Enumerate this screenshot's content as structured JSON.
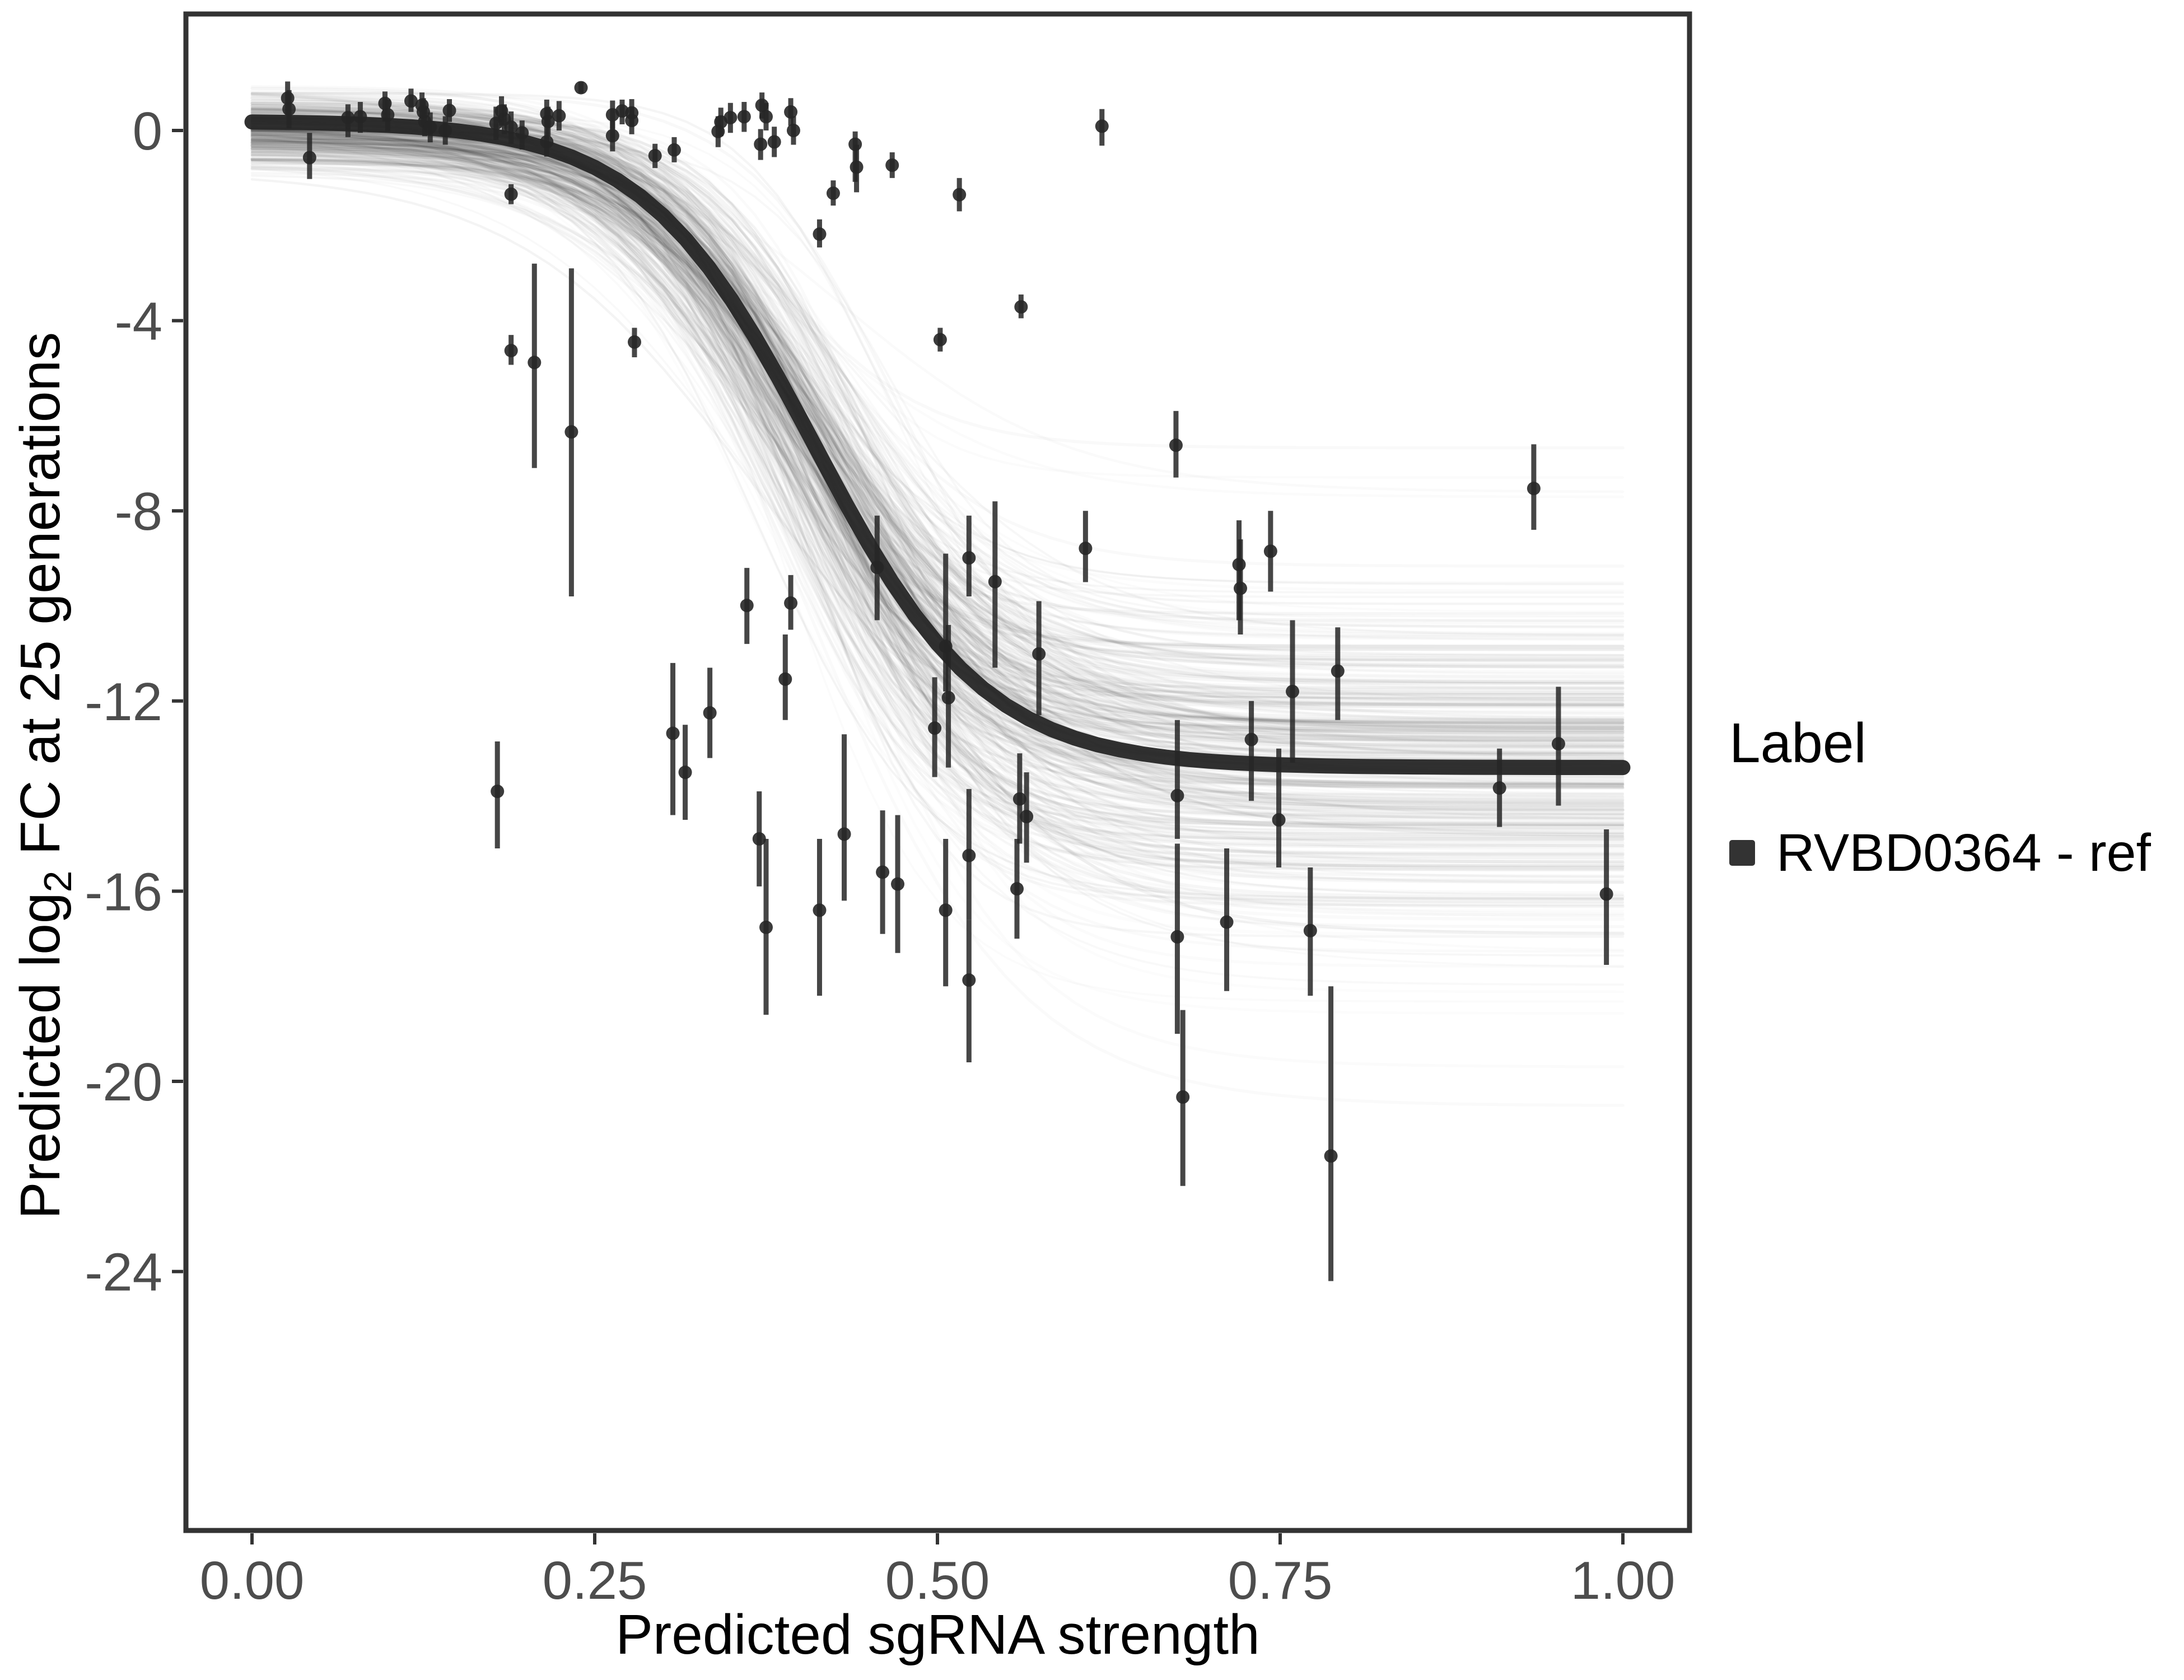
{
  "figure": {
    "background_color": "#ffffff",
    "panel_border_color": "#333333",
    "tick_label_color": "#4d4d4d",
    "x_axis": {
      "title": "Predicted sgRNA strength",
      "tick_labels": [
        "0.00",
        "0.25",
        "0.50",
        "0.75",
        "1.00"
      ]
    },
    "y_axis": {
      "title_prefix": "Predicted  log",
      "title_sub": "2",
      "title_suffix": " FC at 25 generations",
      "tick_labels": [
        "0",
        "-4",
        "-8",
        "-12",
        "-16",
        "-20",
        "-24"
      ]
    },
    "legend": {
      "title": "Label",
      "items": [
        {
          "label": "RVBD0364 - ref",
          "swatch_color": "#333333"
        }
      ]
    }
  },
  "chart_data": {
    "type": "scatter",
    "title": "",
    "xlabel": "Predicted sgRNA strength",
    "ylabel": "Predicted log2 FC at 25 generations",
    "xlim": [
      -0.048,
      1.049
    ],
    "ylim": [
      -29.4,
      2.45
    ],
    "x_ticks": [
      0,
      0.25,
      0.5,
      0.75,
      1.0
    ],
    "y_ticks": [
      0,
      -4,
      -8,
      -12,
      -16,
      -20,
      -24
    ],
    "grid": false,
    "legend_position": "right",
    "point_color": "#262626",
    "curve_color": "#262626",
    "band_color": "#000000",
    "fit_curve": {
      "name": "RVBD0364 - ref",
      "model": "logistic: y = top - (top - bottom) / (1 + exp(-k*(x - x0)))",
      "params": {
        "top": 0.2,
        "bottom": -13.4,
        "x0": 0.41,
        "k": 16
      },
      "x_range": [
        0,
        1
      ]
    },
    "posterior_band": {
      "description": "many translucent posterior-draw sigmoid curves around the fit",
      "n_draws_dense": 280,
      "n_draws_faint": 70,
      "param_sd": {
        "top": 0.4,
        "bottom": 1.5,
        "x0": 0.022,
        "k": 2.5
      },
      "spread_at_x1": [
        -10.5,
        -16.5
      ]
    },
    "points_format": [
      "x",
      "y",
      "ylo",
      "yhi"
    ],
    "points": [
      [
        0.026,
        0.68,
        0.33,
        1.03
      ],
      [
        0.027,
        0.45,
        0.05,
        0.85
      ],
      [
        0.042,
        -0.57,
        -1.02,
        -0.05
      ],
      [
        0.07,
        0.27,
        -0.14,
        0.55
      ],
      [
        0.079,
        0.29,
        -0.05,
        0.6
      ],
      [
        0.097,
        0.57,
        0.19,
        0.82
      ],
      [
        0.099,
        0.33,
        -0.02,
        0.65
      ],
      [
        0.116,
        0.62,
        0.39,
        0.88
      ],
      [
        0.124,
        0.53,
        0.25,
        0.8
      ],
      [
        0.125,
        0.39,
        0.1,
        0.68
      ],
      [
        0.126,
        0.19,
        -0.12,
        0.5
      ],
      [
        0.13,
        0.07,
        -0.25,
        0.38
      ],
      [
        0.141,
        0.0,
        -0.3,
        0.3
      ],
      [
        0.144,
        0.42,
        0.18,
        0.66
      ],
      [
        0.178,
        0.15,
        -0.2,
        0.5
      ],
      [
        0.182,
        0.41,
        0.1,
        0.72
      ],
      [
        0.184,
        0.24,
        -0.08,
        0.55
      ],
      [
        0.189,
        0.07,
        -0.28,
        0.4
      ],
      [
        0.197,
        -0.05,
        -0.4,
        0.21
      ],
      [
        0.215,
        0.35,
        0.05,
        0.65
      ],
      [
        0.216,
        0.19,
        -0.12,
        0.5
      ],
      [
        0.215,
        -0.24,
        -0.55,
        0.05
      ],
      [
        0.224,
        0.31,
        0.0,
        0.62
      ],
      [
        0.24,
        0.9,
        0.78,
        1.02
      ],
      [
        0.263,
        0.33,
        0.03,
        0.63
      ],
      [
        0.263,
        -0.11,
        -0.44,
        0.2
      ],
      [
        0.27,
        0.41,
        0.13,
        0.65
      ],
      [
        0.277,
        0.37,
        0.08,
        0.66
      ],
      [
        0.277,
        0.21,
        -0.08,
        0.5
      ],
      [
        0.294,
        -0.53,
        -0.79,
        -0.28
      ],
      [
        0.308,
        -0.41,
        -0.67,
        -0.14
      ],
      [
        0.34,
        -0.02,
        -0.35,
        0.3
      ],
      [
        0.342,
        0.18,
        -0.12,
        0.48
      ],
      [
        0.349,
        0.27,
        -0.05,
        0.58
      ],
      [
        0.359,
        0.29,
        -0.03,
        0.6
      ],
      [
        0.372,
        0.53,
        0.25,
        0.8
      ],
      [
        0.375,
        0.29,
        0.0,
        0.58
      ],
      [
        0.393,
        0.39,
        0.1,
        0.68
      ],
      [
        0.395,
        0.0,
        -0.3,
        0.3
      ],
      [
        0.371,
        -0.29,
        -0.62,
        0.03
      ],
      [
        0.381,
        -0.24,
        -0.56,
        0.08
      ],
      [
        0.44,
        -0.29,
        -1.08,
        -0.02
      ],
      [
        0.441,
        -0.77,
        -1.3,
        -0.3
      ],
      [
        0.467,
        -0.73,
        -1.0,
        -0.46
      ],
      [
        0.424,
        -1.32,
        -1.58,
        -1.05
      ],
      [
        0.414,
        -2.18,
        -2.46,
        -1.87
      ],
      [
        0.189,
        -1.34,
        -1.55,
        -1.13
      ],
      [
        0.516,
        -1.35,
        -1.7,
        -1.0
      ],
      [
        0.62,
        0.09,
        -0.32,
        0.45
      ],
      [
        0.561,
        -3.71,
        -3.95,
        -3.45
      ],
      [
        0.189,
        -4.63,
        -4.93,
        -4.3
      ],
      [
        0.206,
        -4.88,
        -7.1,
        -2.8
      ],
      [
        0.233,
        -6.34,
        -9.8,
        -2.9
      ],
      [
        0.279,
        -4.45,
        -4.77,
        -4.15
      ],
      [
        0.502,
        -4.4,
        -4.65,
        -4.15
      ],
      [
        0.361,
        -9.99,
        -10.8,
        -9.2
      ],
      [
        0.393,
        -9.94,
        -10.5,
        -9.35
      ],
      [
        0.389,
        -11.54,
        -12.4,
        -10.6
      ],
      [
        0.334,
        -12.25,
        -13.2,
        -11.3
      ],
      [
        0.307,
        -12.68,
        -14.4,
        -11.2
      ],
      [
        0.316,
        -13.5,
        -14.5,
        -12.5
      ],
      [
        0.179,
        -13.9,
        -15.1,
        -12.85
      ],
      [
        0.37,
        -14.9,
        -15.9,
        -13.9
      ],
      [
        0.375,
        -16.76,
        -18.6,
        -14.9
      ],
      [
        0.414,
        -16.4,
        -18.2,
        -14.9
      ],
      [
        0.432,
        -14.8,
        -16.2,
        -12.7
      ],
      [
        0.46,
        -15.6,
        -16.9,
        -14.3
      ],
      [
        0.471,
        -15.85,
        -17.3,
        -14.4
      ],
      [
        0.506,
        -16.4,
        -18.0,
        -14.9
      ],
      [
        0.523,
        -15.25,
        -16.6,
        -13.85
      ],
      [
        0.523,
        -17.87,
        -19.6,
        -16.6
      ],
      [
        0.456,
        -9.19,
        -10.3,
        -8.1
      ],
      [
        0.523,
        -8.99,
        -9.8,
        -8.1
      ],
      [
        0.542,
        -9.49,
        -11.3,
        -7.8
      ],
      [
        0.506,
        -10.85,
        -11.8,
        -8.9
      ],
      [
        0.508,
        -11.93,
        -13.4,
        -10.4
      ],
      [
        0.498,
        -12.57,
        -13.6,
        -11.5
      ],
      [
        0.574,
        -11.01,
        -12.3,
        -9.9
      ],
      [
        0.56,
        -14.06,
        -15.0,
        -13.1
      ],
      [
        0.565,
        -14.43,
        -15.4,
        -13.5
      ],
      [
        0.558,
        -15.95,
        -17.0,
        -14.9
      ],
      [
        0.608,
        -8.79,
        -9.5,
        -8.0
      ],
      [
        0.674,
        -6.62,
        -7.3,
        -5.9
      ],
      [
        0.675,
        -13.99,
        -14.9,
        -12.4
      ],
      [
        0.675,
        -16.96,
        -19.0,
        -15.0
      ],
      [
        0.679,
        -20.33,
        -22.2,
        -18.5
      ],
      [
        0.711,
        -16.65,
        -18.1,
        -15.1
      ],
      [
        0.72,
        -9.13,
        -10.3,
        -8.2
      ],
      [
        0.721,
        -9.63,
        -10.6,
        -8.6
      ],
      [
        0.729,
        -12.81,
        -14.1,
        -12.0
      ],
      [
        0.743,
        -8.85,
        -9.7,
        -8.0
      ],
      [
        0.749,
        -14.5,
        -15.5,
        -13.0
      ],
      [
        0.772,
        -16.83,
        -18.2,
        -15.5
      ],
      [
        0.787,
        -21.57,
        -24.2,
        -18.0
      ],
      [
        0.759,
        -11.8,
        -13.3,
        -10.3
      ],
      [
        0.792,
        -11.37,
        -12.4,
        -10.45
      ],
      [
        0.935,
        -7.53,
        -8.4,
        -6.6
      ],
      [
        0.91,
        -13.83,
        -14.65,
        -13.0
      ],
      [
        0.953,
        -12.9,
        -14.2,
        -11.7
      ],
      [
        0.988,
        -16.06,
        -17.55,
        -14.7
      ]
    ]
  }
}
